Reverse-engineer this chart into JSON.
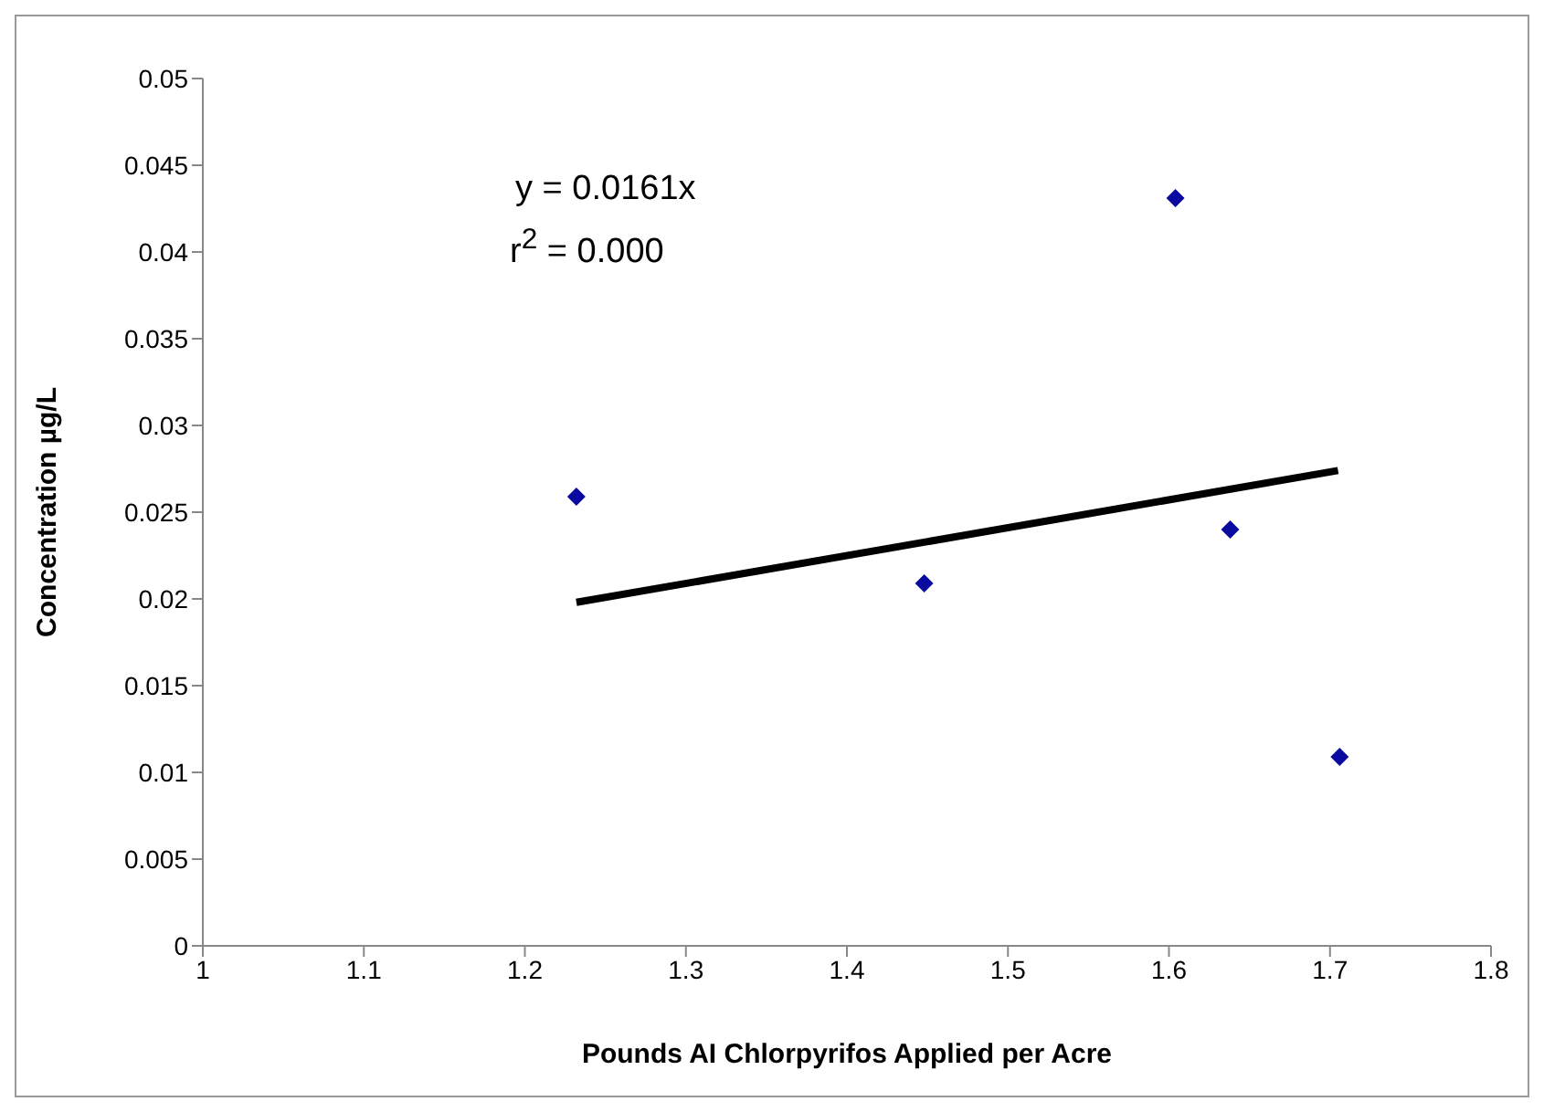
{
  "chart_data": {
    "type": "scatter",
    "xlabel": "Pounds AI Chlorpyrifos Applied per Acre",
    "ylabel": "Concentration µg/L",
    "annotations": [
      "y = 0.0161x",
      "r$^{2}$ = 0.000"
    ],
    "series": [
      {
        "marker": "diamond",
        "color": "#0a0aa0",
        "x": [
          1.232,
          1.448,
          1.604,
          1.638,
          1.706
        ],
        "values": [
          0.0259,
          0.0209,
          0.0431,
          0.024,
          0.0109
        ]
      },
      {
        "type": "line",
        "marker": "none",
        "color": "#000000",
        "x": [
          1.232,
          1.705
        ],
        "values": [
          0.0198,
          0.0274
        ]
      }
    ],
    "xlim": [
      1,
      1.8
    ],
    "xticks": [
      1,
      1.1,
      1.2,
      1.3,
      1.4,
      1.5,
      1.6,
      1.7,
      1.8
    ],
    "ylim": [
      0,
      0.05
    ],
    "yticks": [
      0,
      0.005,
      0.01,
      0.015,
      0.02,
      0.025,
      0.03,
      0.035,
      0.04,
      0.045,
      0.05
    ],
    "grid": false,
    "legend": false
  }
}
